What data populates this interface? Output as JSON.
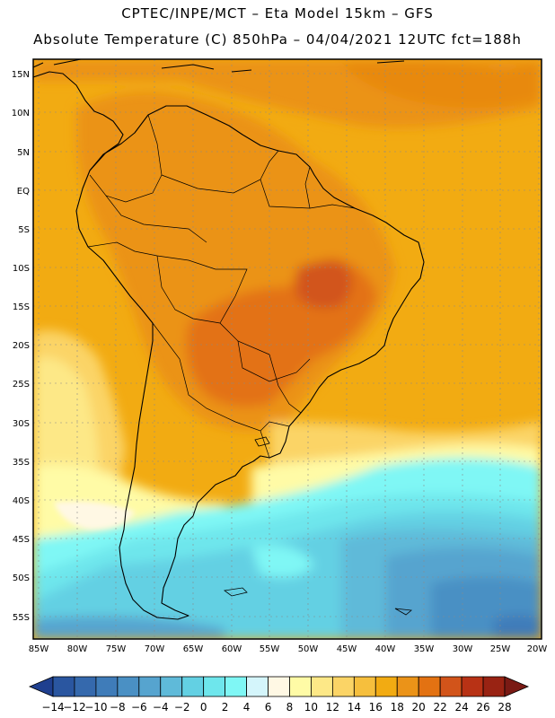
{
  "header": {
    "line1": "CPTEC/INPE/MCT –  Eta Model 15km – GFS",
    "line2": "Absolute Temperature (C) 850hPa – 04/04/2021 12UTC fct=188h"
  },
  "map": {
    "lat_labels": [
      "15N",
      "10N",
      "5N",
      "EQ",
      "5S",
      "10S",
      "15S",
      "20S",
      "25S",
      "30S",
      "35S",
      "40S",
      "45S",
      "50S",
      "55S"
    ],
    "lon_labels": [
      "85W",
      "80W",
      "75W",
      "70W",
      "65W",
      "60W",
      "55W",
      "50W",
      "45W",
      "40W",
      "35W",
      "30W",
      "25W",
      "20W"
    ]
  },
  "colorbar": {
    "labels": [
      "-14",
      "-12",
      "-10",
      "-8",
      "-6",
      "-4",
      "-2",
      "0",
      "2",
      "4",
      "6",
      "8",
      "10",
      "12",
      "14",
      "16",
      "18",
      "20",
      "22",
      "24",
      "26",
      "28"
    ],
    "colors": [
      "#1f3f8f",
      "#2a56a0",
      "#3569ad",
      "#3f7cb9",
      "#4a90c4",
      "#56a4cf",
      "#5fbad9",
      "#63d0e3",
      "#6ee6ec",
      "#7ff7f5",
      "#d4f5fb",
      "#fff8e4",
      "#fffba6",
      "#fde887",
      "#fbd466",
      "#f6bf3d",
      "#f2ab12",
      "#eb9318",
      "#e37212",
      "#d2541a",
      "#b83215",
      "#992313",
      "#7a1a14"
    ]
  }
}
